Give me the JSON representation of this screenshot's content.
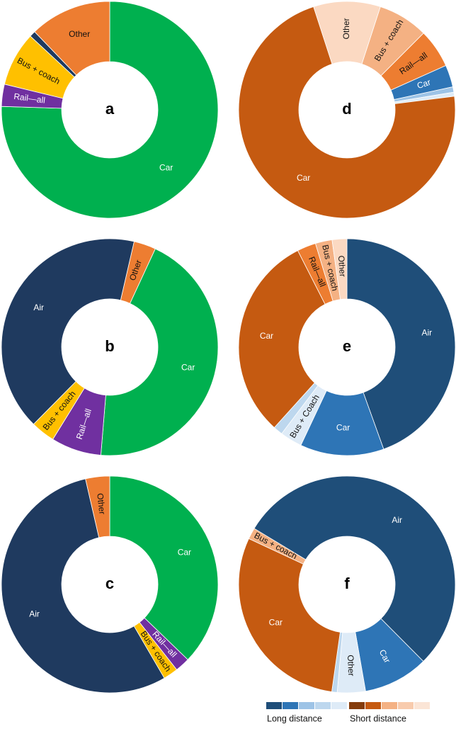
{
  "chart_data": [
    {
      "type": "donut",
      "title": "a",
      "start_angle": 0,
      "categories": [
        "Car",
        "Rail—all",
        "Bus + coach",
        null,
        "Other"
      ],
      "values": [
        75.5,
        3.3,
        8.1,
        0.9,
        12.2
      ],
      "colors": [
        "#00b04f",
        "#7030a0",
        "#ffc000",
        "#1f3a5f",
        "#ed7d31"
      ]
    },
    {
      "type": "donut",
      "title": "b",
      "start_angle": 13,
      "categories": [
        "Other",
        "Car",
        "Rail—all",
        "Bus + coach",
        "Air"
      ],
      "values": [
        3.3,
        44.4,
        7.5,
        3.6,
        41.2
      ],
      "colors": [
        "#ed7d31",
        "#00b04f",
        "#7030a0",
        "#ffc000",
        "#1f3a5f"
      ]
    },
    {
      "type": "donut",
      "title": "c",
      "start_angle": 0,
      "categories": [
        "Car",
        "Rail—all",
        "Bus + coach",
        "Air",
        "Other"
      ],
      "values": [
        37.2,
        2.2,
        2.2,
        54.8,
        3.6
      ],
      "colors": [
        "#00b04f",
        "#7030a0",
        "#ffc000",
        "#1f3a5f",
        "#ed7d31"
      ]
    },
    {
      "type": "donut",
      "title": "d",
      "start_angle": 342,
      "categories": [
        "Other",
        "Bus + coach",
        "Rail—all",
        "Car",
        null,
        null,
        "Car"
      ],
      "values": [
        10.0,
        7.5,
        5.8,
        3.3,
        0.8,
        0.6,
        72.0
      ],
      "colors": [
        "#fbd9c2",
        "#f4b183",
        "#ed7d31",
        "#2e75b6",
        "#9dc3e6",
        "#deebf7",
        "#c55a11"
      ]
    },
    {
      "type": "donut",
      "title": "e",
      "start_angle": 0,
      "categories": [
        "Air",
        "Car",
        "Bus + Coach",
        null,
        "Car",
        "Rail—all",
        "Bus + coach",
        "Other"
      ],
      "values": [
        44.5,
        12.5,
        3.3,
        1.4,
        30.8,
        2.8,
        2.5,
        2.2
      ],
      "colors": [
        "#1f4e79",
        "#2e75b6",
        "#deebf7",
        "#bdd7ee",
        "#c55a11",
        "#ed7d31",
        "#f4b183",
        "#fbd9c2"
      ]
    },
    {
      "type": "donut",
      "title": "f",
      "start_angle": 295,
      "categories": [
        "Bus + coach",
        "Air",
        "Car",
        "Other",
        null,
        "Car"
      ],
      "values": [
        1.7,
        53.9,
        9.7,
        4.2,
        0.8,
        29.7
      ],
      "colors": [
        "#f4b183",
        "#1f4e79",
        "#2e75b6",
        "#deebf7",
        "#bdd7ee",
        "#c55a11"
      ]
    }
  ],
  "legend": [
    {
      "name": "Long distance",
      "colors": [
        "#1f4e79",
        "#2e75b6",
        "#9dc3e6",
        "#bdd7ee",
        "#deebf7"
      ]
    },
    {
      "name": "Short distance",
      "colors": [
        "#843c0c",
        "#c55a11",
        "#f4b183",
        "#f8cbad",
        "#fbe5d6"
      ]
    }
  ]
}
